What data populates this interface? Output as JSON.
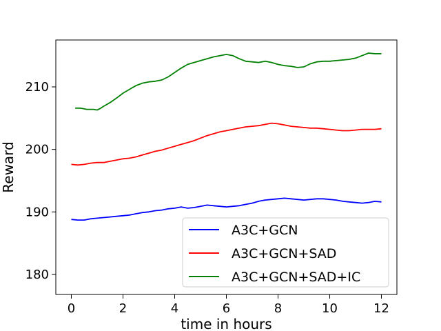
{
  "chart_data": {
    "type": "line",
    "title": "",
    "xlabel": "time in hours",
    "ylabel": "Reward",
    "xlim": [
      -0.6,
      12.6
    ],
    "ylim": [
      176.8,
      217.5
    ],
    "xticks": [
      0,
      2,
      4,
      6,
      8,
      10,
      12
    ],
    "yticks": [
      180,
      190,
      200,
      210
    ],
    "grid": false,
    "legend_position": "lower-right",
    "series": [
      {
        "name": "A3C+GCN",
        "color": "#0000ff",
        "points": [
          [
            0,
            188.8
          ],
          [
            0.25,
            188.7
          ],
          [
            0.5,
            188.7
          ],
          [
            0.75,
            188.9
          ],
          [
            1,
            189.0
          ],
          [
            1.25,
            189.1
          ],
          [
            1.5,
            189.2
          ],
          [
            1.75,
            189.3
          ],
          [
            2,
            189.4
          ],
          [
            2.25,
            189.5
          ],
          [
            2.5,
            189.7
          ],
          [
            2.75,
            189.9
          ],
          [
            3,
            190.0
          ],
          [
            3.25,
            190.2
          ],
          [
            3.5,
            190.3
          ],
          [
            3.75,
            190.5
          ],
          [
            4,
            190.6
          ],
          [
            4.25,
            190.8
          ],
          [
            4.5,
            190.6
          ],
          [
            4.75,
            190.7
          ],
          [
            5,
            190.9
          ],
          [
            5.25,
            191.1
          ],
          [
            5.5,
            191.0
          ],
          [
            5.75,
            190.9
          ],
          [
            6,
            190.8
          ],
          [
            6.25,
            190.9
          ],
          [
            6.5,
            191.0
          ],
          [
            6.75,
            191.2
          ],
          [
            7,
            191.4
          ],
          [
            7.25,
            191.7
          ],
          [
            7.5,
            191.9
          ],
          [
            7.75,
            192.0
          ],
          [
            8,
            192.1
          ],
          [
            8.25,
            192.2
          ],
          [
            8.5,
            192.1
          ],
          [
            8.75,
            192.0
          ],
          [
            9,
            191.9
          ],
          [
            9.25,
            192.0
          ],
          [
            9.5,
            192.1
          ],
          [
            9.75,
            192.1
          ],
          [
            10,
            192.0
          ],
          [
            10.25,
            191.9
          ],
          [
            10.5,
            191.7
          ],
          [
            10.75,
            191.6
          ],
          [
            11,
            191.5
          ],
          [
            11.25,
            191.4
          ],
          [
            11.5,
            191.5
          ],
          [
            11.75,
            191.7
          ],
          [
            12,
            191.6
          ]
        ]
      },
      {
        "name": "A3C+GCN+SAD",
        "color": "#ff0000",
        "points": [
          [
            0,
            197.6
          ],
          [
            0.25,
            197.5
          ],
          [
            0.5,
            197.6
          ],
          [
            0.75,
            197.8
          ],
          [
            1,
            197.9
          ],
          [
            1.25,
            197.9
          ],
          [
            1.5,
            198.1
          ],
          [
            1.75,
            198.3
          ],
          [
            2,
            198.5
          ],
          [
            2.25,
            198.6
          ],
          [
            2.5,
            198.8
          ],
          [
            2.75,
            199.1
          ],
          [
            3,
            199.4
          ],
          [
            3.25,
            199.7
          ],
          [
            3.5,
            199.9
          ],
          [
            3.75,
            200.2
          ],
          [
            4,
            200.5
          ],
          [
            4.25,
            200.8
          ],
          [
            4.5,
            201.1
          ],
          [
            4.75,
            201.4
          ],
          [
            5,
            201.8
          ],
          [
            5.25,
            202.2
          ],
          [
            5.5,
            202.5
          ],
          [
            5.75,
            202.8
          ],
          [
            6,
            203.0
          ],
          [
            6.25,
            203.2
          ],
          [
            6.5,
            203.4
          ],
          [
            6.75,
            203.6
          ],
          [
            7,
            203.7
          ],
          [
            7.25,
            203.8
          ],
          [
            7.5,
            204.0
          ],
          [
            7.75,
            204.2
          ],
          [
            8,
            204.1
          ],
          [
            8.25,
            203.9
          ],
          [
            8.5,
            203.7
          ],
          [
            8.75,
            203.6
          ],
          [
            9,
            203.5
          ],
          [
            9.25,
            203.4
          ],
          [
            9.5,
            203.4
          ],
          [
            9.75,
            203.3
          ],
          [
            10,
            203.2
          ],
          [
            10.25,
            203.1
          ],
          [
            10.5,
            203.0
          ],
          [
            10.75,
            203.0
          ],
          [
            11,
            203.1
          ],
          [
            11.25,
            203.2
          ],
          [
            11.5,
            203.2
          ],
          [
            11.75,
            203.2
          ],
          [
            12,
            203.3
          ]
        ]
      },
      {
        "name": "A3C+GCN+SAD+IC",
        "color": "#008000",
        "points": [
          [
            0.15,
            206.6
          ],
          [
            0.35,
            206.6
          ],
          [
            0.6,
            206.4
          ],
          [
            0.85,
            206.4
          ],
          [
            1,
            206.3
          ],
          [
            1.1,
            206.5
          ],
          [
            1.25,
            206.9
          ],
          [
            1.5,
            207.5
          ],
          [
            1.75,
            208.2
          ],
          [
            2,
            209.0
          ],
          [
            2.25,
            209.6
          ],
          [
            2.5,
            210.2
          ],
          [
            2.75,
            210.6
          ],
          [
            3,
            210.8
          ],
          [
            3.25,
            210.9
          ],
          [
            3.5,
            211.1
          ],
          [
            3.75,
            211.6
          ],
          [
            4,
            212.3
          ],
          [
            4.25,
            213.0
          ],
          [
            4.5,
            213.6
          ],
          [
            4.75,
            213.9
          ],
          [
            5,
            214.2
          ],
          [
            5.25,
            214.5
          ],
          [
            5.5,
            214.8
          ],
          [
            5.75,
            215.0
          ],
          [
            6,
            215.2
          ],
          [
            6.25,
            215.0
          ],
          [
            6.5,
            214.5
          ],
          [
            6.75,
            214.1
          ],
          [
            7,
            214.0
          ],
          [
            7.25,
            213.9
          ],
          [
            7.5,
            214.1
          ],
          [
            7.75,
            213.9
          ],
          [
            8,
            213.6
          ],
          [
            8.25,
            213.4
          ],
          [
            8.5,
            213.3
          ],
          [
            8.75,
            213.1
          ],
          [
            9,
            213.2
          ],
          [
            9.25,
            213.7
          ],
          [
            9.5,
            214.0
          ],
          [
            9.75,
            214.1
          ],
          [
            10,
            214.1
          ],
          [
            10.25,
            214.2
          ],
          [
            10.5,
            214.3
          ],
          [
            10.75,
            214.4
          ],
          [
            11,
            214.6
          ],
          [
            11.25,
            215.0
          ],
          [
            11.5,
            215.4
          ],
          [
            11.75,
            215.3
          ],
          [
            12,
            215.3
          ]
        ]
      }
    ]
  }
}
